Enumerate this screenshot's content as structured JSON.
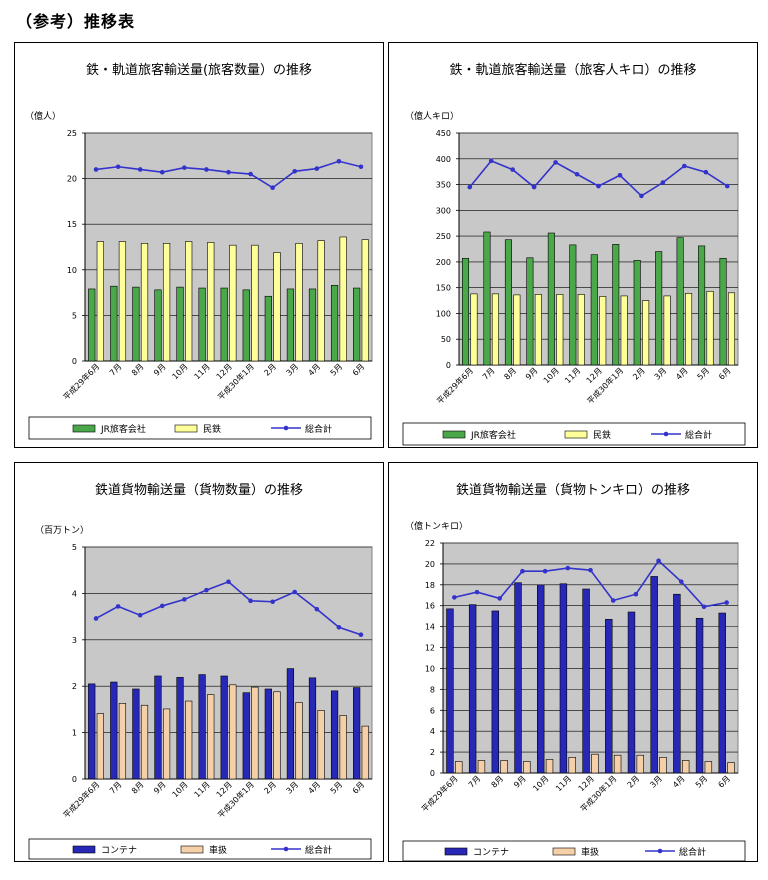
{
  "page_title": "（参考）推移表",
  "colors": {
    "jr": "#4aa84a",
    "private": "#ffff99",
    "total_line": "#3333cc",
    "container": "#2828b8",
    "wagon": "#f5cfa8",
    "plot_bg": "#c8c8c8"
  },
  "chart_data": [
    {
      "type": "bar",
      "title": "鉄・軌道旅客輸送量(旅客数量）の推移",
      "ylabel": "（億人）",
      "ylim": [
        0,
        25
      ],
      "yticks": [
        "0",
        "5",
        "10",
        "15",
        "20",
        "25"
      ],
      "categories": [
        "平成29年6月",
        "7月",
        "8月",
        "9月",
        "10月",
        "11月",
        "12月",
        "平成30年1月",
        "2月",
        "3月",
        "4月",
        "5月",
        "6月"
      ],
      "series": [
        {
          "name": "JR旅客会社",
          "kind": "bar",
          "values": [
            7.9,
            8.2,
            8.1,
            7.8,
            8.1,
            8.0,
            8.0,
            7.8,
            7.1,
            7.9,
            7.9,
            8.3,
            8.0
          ]
        },
        {
          "name": "民鉄",
          "kind": "bar",
          "values": [
            13.1,
            13.1,
            12.9,
            12.9,
            13.1,
            13.0,
            12.7,
            12.7,
            11.9,
            12.9,
            13.2,
            13.6,
            13.3
          ]
        },
        {
          "name": "総合計",
          "kind": "line",
          "values": [
            21.0,
            21.3,
            21.0,
            20.7,
            21.2,
            21.0,
            20.7,
            20.5,
            19.0,
            20.8,
            21.1,
            21.9,
            21.3
          ]
        }
      ]
    },
    {
      "type": "bar",
      "title": "鉄・軌道旅客輸送量（旅客人キロ）の推移",
      "ylabel": "（億人キロ）",
      "ylim": [
        0,
        450
      ],
      "yticks": [
        "0",
        "50",
        "100",
        "150",
        "200",
        "250",
        "300",
        "350",
        "400",
        "450"
      ],
      "categories": [
        "平成29年6月",
        "7月",
        "8月",
        "9月",
        "10月",
        "11月",
        "12月",
        "平成30年1月",
        "2月",
        "3月",
        "4月",
        "5月",
        "6月"
      ],
      "series": [
        {
          "name": "JR旅客会社",
          "kind": "bar",
          "values": [
            207,
            258,
            243,
            208,
            256,
            233,
            214,
            234,
            203,
            220,
            247,
            231,
            207
          ]
        },
        {
          "name": "民鉄",
          "kind": "bar",
          "values": [
            138,
            138,
            136,
            137,
            137,
            137,
            133,
            134,
            125,
            134,
            139,
            143,
            140
          ]
        },
        {
          "name": "総合計",
          "kind": "line",
          "values": [
            345,
            396,
            379,
            345,
            393,
            370,
            347,
            368,
            328,
            354,
            386,
            374,
            347
          ]
        }
      ]
    },
    {
      "type": "bar",
      "title": "鉄道貨物輸送量（貨物数量）の推移",
      "ylabel": "（百万トン）",
      "ylim": [
        0,
        5
      ],
      "yticks": [
        "0",
        "1",
        "2",
        "3",
        "4",
        "5"
      ],
      "categories": [
        "平成29年6月",
        "7月",
        "8月",
        "9月",
        "10月",
        "11月",
        "12月",
        "平成30年1月",
        "2月",
        "3月",
        "4月",
        "5月",
        "6月"
      ],
      "series": [
        {
          "name": "コンテナ",
          "kind": "bar",
          "values": [
            2.05,
            2.09,
            1.94,
            2.22,
            2.19,
            2.25,
            2.22,
            1.86,
            1.94,
            2.38,
            2.18,
            1.9,
            1.97
          ]
        },
        {
          "name": "車扱",
          "kind": "bar",
          "values": [
            1.41,
            1.63,
            1.59,
            1.51,
            1.68,
            1.82,
            2.03,
            1.98,
            1.88,
            1.65,
            1.48,
            1.37,
            1.14
          ]
        },
        {
          "name": "総合計",
          "kind": "line",
          "values": [
            3.46,
            3.72,
            3.53,
            3.73,
            3.87,
            4.07,
            4.25,
            3.84,
            3.82,
            4.03,
            3.66,
            3.27,
            3.11
          ]
        }
      ]
    },
    {
      "type": "bar",
      "title": "鉄道貨物輸送量（貨物トンキロ）の推移",
      "ylabel": "（億トンキロ）",
      "ylim": [
        0,
        22
      ],
      "yticks": [
        "0",
        "2",
        "4",
        "6",
        "8",
        "10",
        "12",
        "14",
        "16",
        "18",
        "20",
        "22"
      ],
      "categories": [
        "平成29年6月",
        "7月",
        "8月",
        "9月",
        "10月",
        "11月",
        "12月",
        "平成30年1月",
        "2月",
        "3月",
        "4月",
        "5月",
        "6月"
      ],
      "series": [
        {
          "name": "コンテナ",
          "kind": "bar",
          "values": [
            15.7,
            16.1,
            15.5,
            18.2,
            18.0,
            18.1,
            17.6,
            14.7,
            15.4,
            18.8,
            17.1,
            14.8,
            15.3
          ]
        },
        {
          "name": "車扱",
          "kind": "bar",
          "values": [
            1.1,
            1.2,
            1.2,
            1.1,
            1.3,
            1.5,
            1.8,
            1.7,
            1.7,
            1.5,
            1.2,
            1.1,
            1.0
          ]
        },
        {
          "name": "総合計",
          "kind": "line",
          "values": [
            16.8,
            17.3,
            16.7,
            19.3,
            19.3,
            19.6,
            19.4,
            16.5,
            17.1,
            20.3,
            18.3,
            15.9,
            16.3
          ]
        }
      ]
    }
  ]
}
